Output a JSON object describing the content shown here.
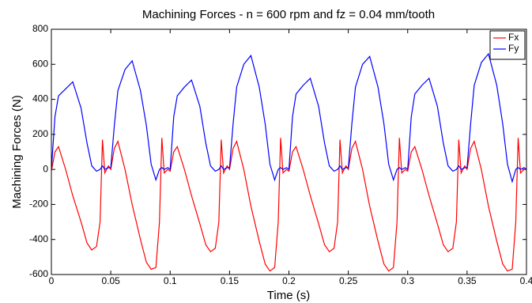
{
  "chart_data": {
    "type": "line",
    "title": "Machining Forces - n = 600 rpm and fz = 0.04 mm/tooth",
    "x_label": "Time (s)",
    "y_label": "Machining Forces (N)",
    "x": [
      0,
      0.003,
      0.006,
      0.012,
      0.018,
      0.025,
      0.03,
      0.034,
      0.038,
      0.041,
      0.043,
      0.045,
      0.048,
      0.05,
      0.053,
      0.056,
      0.062,
      0.068,
      0.075,
      0.08,
      0.084,
      0.088,
      0.091,
      0.093,
      0.095,
      0.098,
      0.1,
      0.103,
      0.106,
      0.112,
      0.118,
      0.125,
      0.13,
      0.134,
      0.138,
      0.141,
      0.143,
      0.145,
      0.148,
      0.15,
      0.153,
      0.156,
      0.162,
      0.168,
      0.175,
      0.18,
      0.184,
      0.188,
      0.191,
      0.193,
      0.195,
      0.198,
      0.2,
      0.203,
      0.206,
      0.212,
      0.218,
      0.225,
      0.23,
      0.234,
      0.238,
      0.241,
      0.243,
      0.245,
      0.248,
      0.25,
      0.253,
      0.256,
      0.262,
      0.268,
      0.275,
      0.28,
      0.284,
      0.288,
      0.291,
      0.293,
      0.295,
      0.298,
      0.3,
      0.303,
      0.306,
      0.312,
      0.318,
      0.325,
      0.33,
      0.334,
      0.338,
      0.341,
      0.343,
      0.345,
      0.348,
      0.35,
      0.353,
      0.356,
      0.362,
      0.368,
      0.375,
      0.38,
      0.384,
      0.388,
      0.391,
      0.393,
      0.395,
      0.398,
      0.4
    ],
    "series": [
      {
        "name": "Fx",
        "color": "#ff0000",
        "values": [
          -10,
          100,
          130,
          0,
          -150,
          -300,
          -420,
          -460,
          -440,
          -300,
          170,
          -20,
          20,
          0,
          120,
          160,
          0,
          -200,
          -400,
          -530,
          -570,
          -560,
          -300,
          180,
          -20,
          0,
          -10,
          100,
          130,
          0,
          -150,
          -310,
          -430,
          -470,
          -450,
          -300,
          170,
          -20,
          20,
          0,
          120,
          160,
          0,
          -210,
          -410,
          -540,
          -580,
          -560,
          -300,
          180,
          -20,
          0,
          -10,
          100,
          130,
          0,
          -150,
          -310,
          -430,
          -470,
          -450,
          -300,
          170,
          -20,
          20,
          0,
          120,
          160,
          0,
          -210,
          -410,
          -540,
          -580,
          -560,
          -300,
          180,
          -20,
          0,
          -10,
          100,
          130,
          0,
          -150,
          -310,
          -430,
          -470,
          -450,
          -300,
          170,
          -20,
          20,
          0,
          120,
          160,
          0,
          -210,
          -410,
          -540,
          -580,
          -570,
          -300,
          180,
          -20,
          0,
          0
        ]
      },
      {
        "name": "Fy",
        "color": "#0000ff",
        "values": [
          0,
          300,
          420,
          460,
          500,
          350,
          150,
          20,
          -10,
          0,
          20,
          0,
          10,
          10,
          250,
          450,
          570,
          620,
          450,
          250,
          30,
          -60,
          0,
          10,
          0,
          10,
          0,
          300,
          420,
          470,
          510,
          360,
          150,
          20,
          -10,
          0,
          20,
          0,
          10,
          10,
          260,
          470,
          600,
          650,
          470,
          260,
          30,
          -60,
          0,
          10,
          0,
          10,
          0,
          300,
          430,
          480,
          520,
          360,
          150,
          20,
          -10,
          0,
          20,
          0,
          10,
          10,
          260,
          470,
          600,
          645,
          470,
          260,
          30,
          -60,
          0,
          10,
          0,
          10,
          0,
          300,
          430,
          480,
          520,
          360,
          150,
          20,
          -10,
          0,
          20,
          0,
          10,
          10,
          260,
          480,
          610,
          660,
          480,
          260,
          30,
          -70,
          0,
          10,
          0,
          10,
          0
        ]
      }
    ],
    "xlim": [
      0,
      0.4
    ],
    "ylim": [
      -600,
      800
    ],
    "xticks": [
      0,
      0.05,
      0.1,
      0.15,
      0.2,
      0.25,
      0.3,
      0.35,
      0.4
    ],
    "yticks": [
      -600,
      -400,
      -200,
      0,
      200,
      400,
      600,
      800
    ],
    "grid": false,
    "legend": "upper-right"
  }
}
